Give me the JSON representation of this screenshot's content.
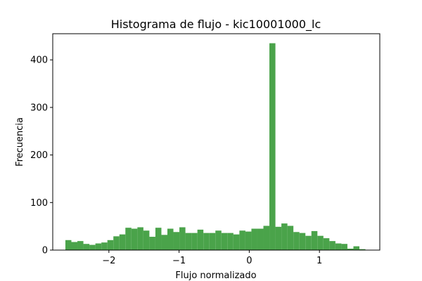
{
  "chart_data": {
    "type": "bar",
    "title": "Histograma de flujo - kic10001000_lc",
    "xlabel": "Flujo normalizado",
    "ylabel": "Frecuencia",
    "xlim": [
      -2.8,
      1.86
    ],
    "ylim": [
      0,
      455
    ],
    "xticks": [
      -2,
      -1,
      0,
      1
    ],
    "xtick_labels": [
      "−2",
      "−1",
      "0",
      "1"
    ],
    "yticks": [
      0,
      100,
      200,
      300,
      400
    ],
    "ytick_labels": [
      "0",
      "100",
      "200",
      "300",
      "400"
    ],
    "bar_color": "#4aa34a",
    "bins": {
      "start": -2.62,
      "width": 0.0855,
      "counts": [
        21,
        17,
        19,
        13,
        11,
        14,
        16,
        21,
        29,
        33,
        47,
        45,
        48,
        41,
        28,
        47,
        32,
        45,
        38,
        48,
        36,
        36,
        43,
        36,
        36,
        41,
        36,
        36,
        33,
        41,
        39,
        45,
        45,
        51,
        435,
        49,
        56,
        51,
        38,
        36,
        30,
        40,
        30,
        25,
        19,
        14,
        13,
        3,
        8,
        2
      ]
    }
  }
}
